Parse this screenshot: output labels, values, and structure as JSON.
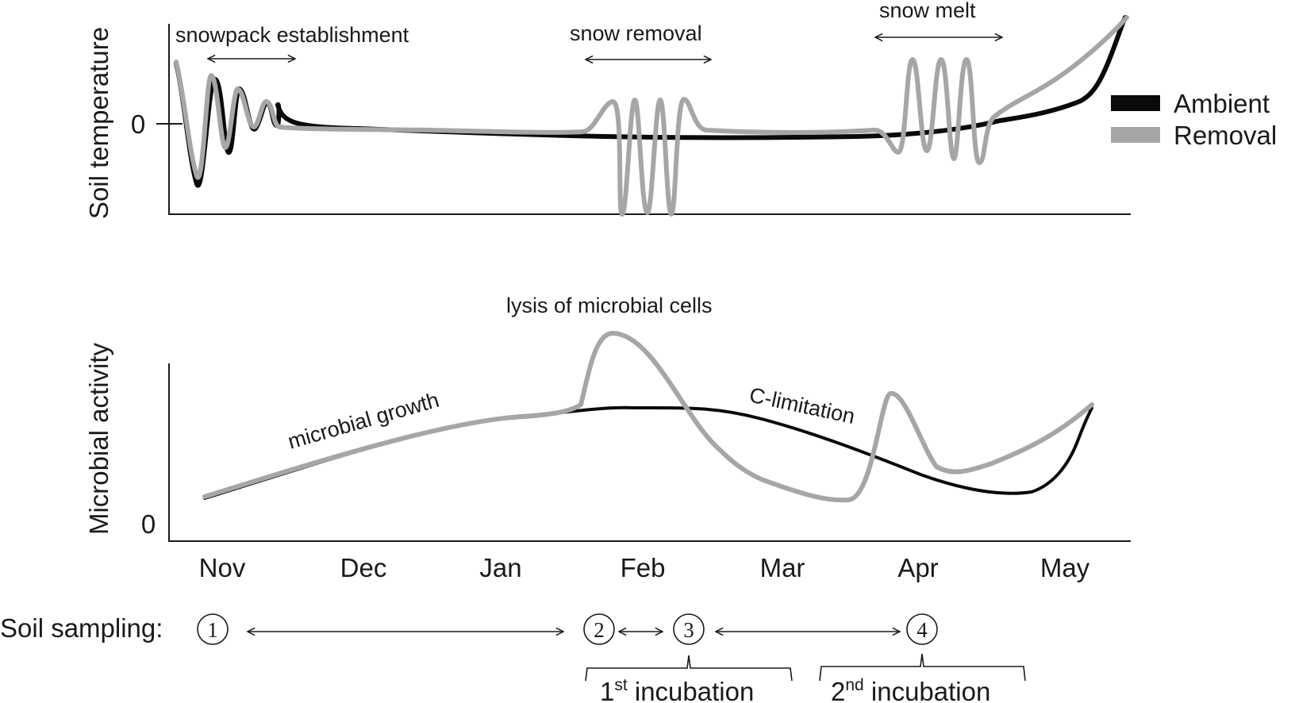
{
  "colors": {
    "ambient": "#0a0a0a",
    "removal": "#a6a6a6"
  },
  "chart_data": [
    {
      "type": "line",
      "panel": "top",
      "ylabel": "Soil temperature",
      "y_tick_labels": [
        "0"
      ],
      "x_tick_labels": [
        "Nov",
        "Dec",
        "Jan",
        "Feb",
        "Mar",
        "Apr",
        "May"
      ],
      "legend": {
        "position": "right",
        "entries": [
          "Ambient",
          "Removal"
        ]
      },
      "annotations": [
        "snowpack establishment",
        "snow removal",
        "snow melt"
      ],
      "series": [
        {
          "name": "Ambient",
          "color": "#0a0a0a",
          "description": "oscillates around 0 during snowpack establishment, stays just below 0 through winter, rises steeply in May"
        },
        {
          "name": "Removal",
          "color": "#a6a6a6",
          "description": "same as Ambient except large freeze-thaw oscillations during snow removal (Feb) and snow melt (Apr)"
        }
      ]
    },
    {
      "type": "line",
      "panel": "bottom",
      "ylabel": "Microbial activity",
      "y_tick_labels": [
        "0"
      ],
      "x_tick_labels": [
        "Nov",
        "Dec",
        "Jan",
        "Feb",
        "Mar",
        "Apr",
        "May"
      ],
      "annotations": [
        "microbial growth",
        "lysis of microbial cells",
        "C-limitation"
      ],
      "series": [
        {
          "name": "Ambient",
          "color": "#0a0a0a",
          "description": "gradual rise to a plateau in Feb, decline through Apr, sharp increase in May"
        },
        {
          "name": "Removal",
          "color": "#a6a6a6",
          "description": "follows Ambient until late Jan, peak in Feb, drop in Mar, second peak in Apr, rise in May"
        }
      ]
    }
  ],
  "sampling": {
    "label": "Soil sampling:",
    "points": [
      "1",
      "2",
      "3",
      "4"
    ],
    "incubations": [
      {
        "ordinal": "1",
        "sup": "st",
        "text": " incubation"
      },
      {
        "ordinal": "2",
        "sup": "nd",
        "text": " incubation"
      }
    ]
  }
}
